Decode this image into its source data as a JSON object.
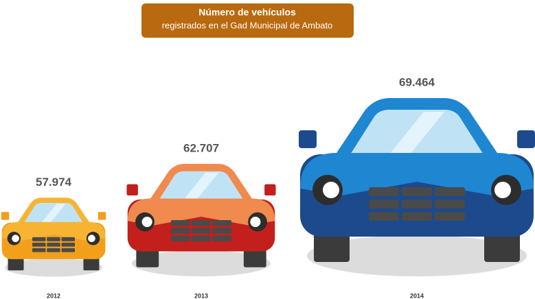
{
  "chart_data": {
    "type": "pictorial",
    "title": "Número de vehículos",
    "subtitle": "registrados en el Gad Municipal de Ambato",
    "categories": [
      "2012",
      "2013",
      "2014"
    ],
    "values": [
      57974,
      62707,
      69464
    ],
    "value_labels": [
      "57.974",
      "62.707",
      "69.464"
    ],
    "colors": [
      {
        "body": "#f29f1c",
        "upper": "#f7b433"
      },
      {
        "body": "#c21f1d",
        "upper": "#f08a4e"
      },
      {
        "body": "#1c4a8c",
        "upper": "#1f86d2"
      }
    ]
  }
}
